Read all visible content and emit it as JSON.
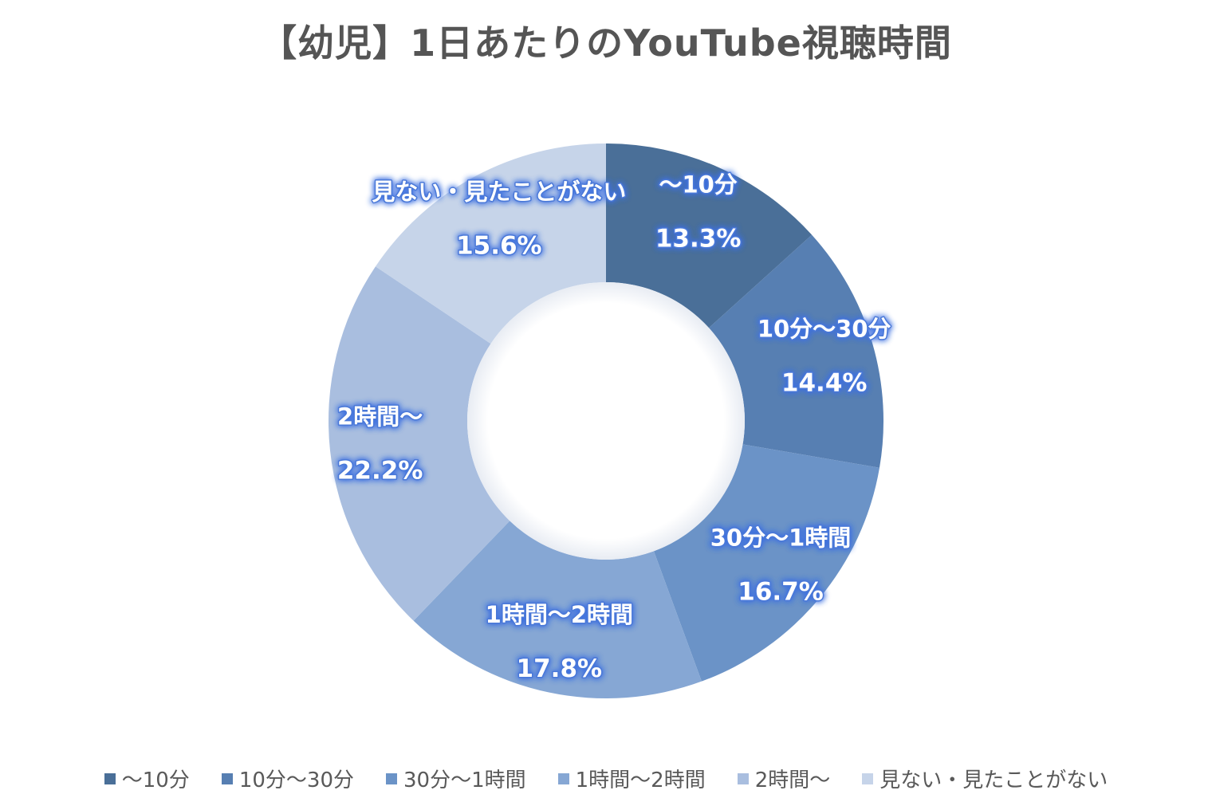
{
  "chart_data": {
    "type": "pie",
    "title": "【幼児】1日あたりのYouTube視聴時間",
    "categories": [
      "〜10分",
      "10分〜30分",
      "30分〜1時間",
      "1時間〜2時間",
      "2時間〜",
      "見ない・見たことがない"
    ],
    "values": [
      13.3,
      14.4,
      16.7,
      17.8,
      22.2,
      15.6
    ],
    "value_labels": [
      "13.3%",
      "14.4%",
      "16.7%",
      "17.8%",
      "22.2%",
      "15.6%"
    ],
    "colors": [
      "#4a6f98",
      "#577fb2",
      "#6b93c7",
      "#86a7d4",
      "#a9bedf",
      "#c6d4e9"
    ],
    "donut": true,
    "legend_position": "bottom",
    "data_labels": "inside"
  }
}
